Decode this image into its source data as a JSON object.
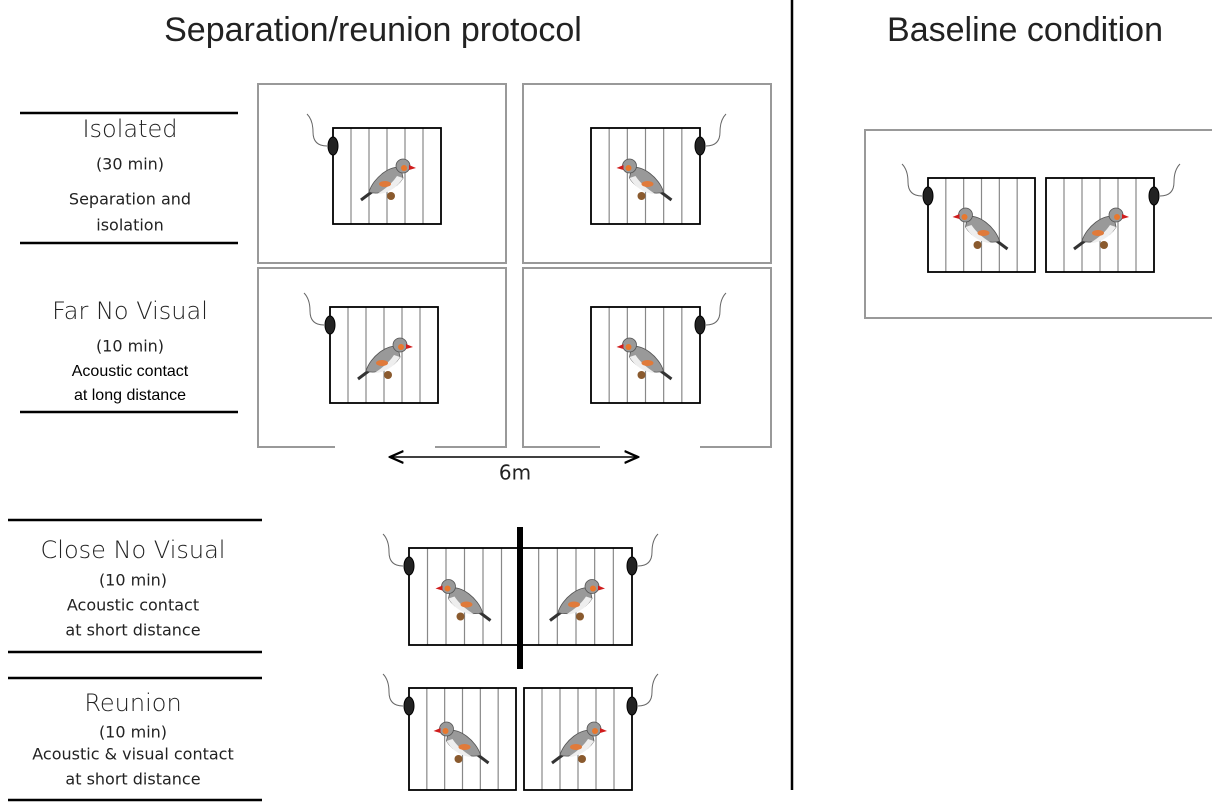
{
  "titles": {
    "left": "Separation/reunion protocol",
    "right": "Baseline condition"
  },
  "stages": [
    {
      "name": "Isolated",
      "duration": "(30 min)",
      "description": [
        "Separation and",
        "isolation"
      ]
    },
    {
      "name": "Far No Visual",
      "duration": "(10 min)",
      "description": [
        "Acoustic contact",
        "at long distance"
      ]
    },
    {
      "name": "Close No Visual",
      "duration": "(10 min)",
      "description": [
        "Acoustic contact",
        "at short distance"
      ]
    },
    {
      "name": "Reunion",
      "duration": "(10 min)",
      "description": [
        "Acoustic & visual contact",
        "at short distance"
      ]
    }
  ],
  "distance_label": "6m"
}
